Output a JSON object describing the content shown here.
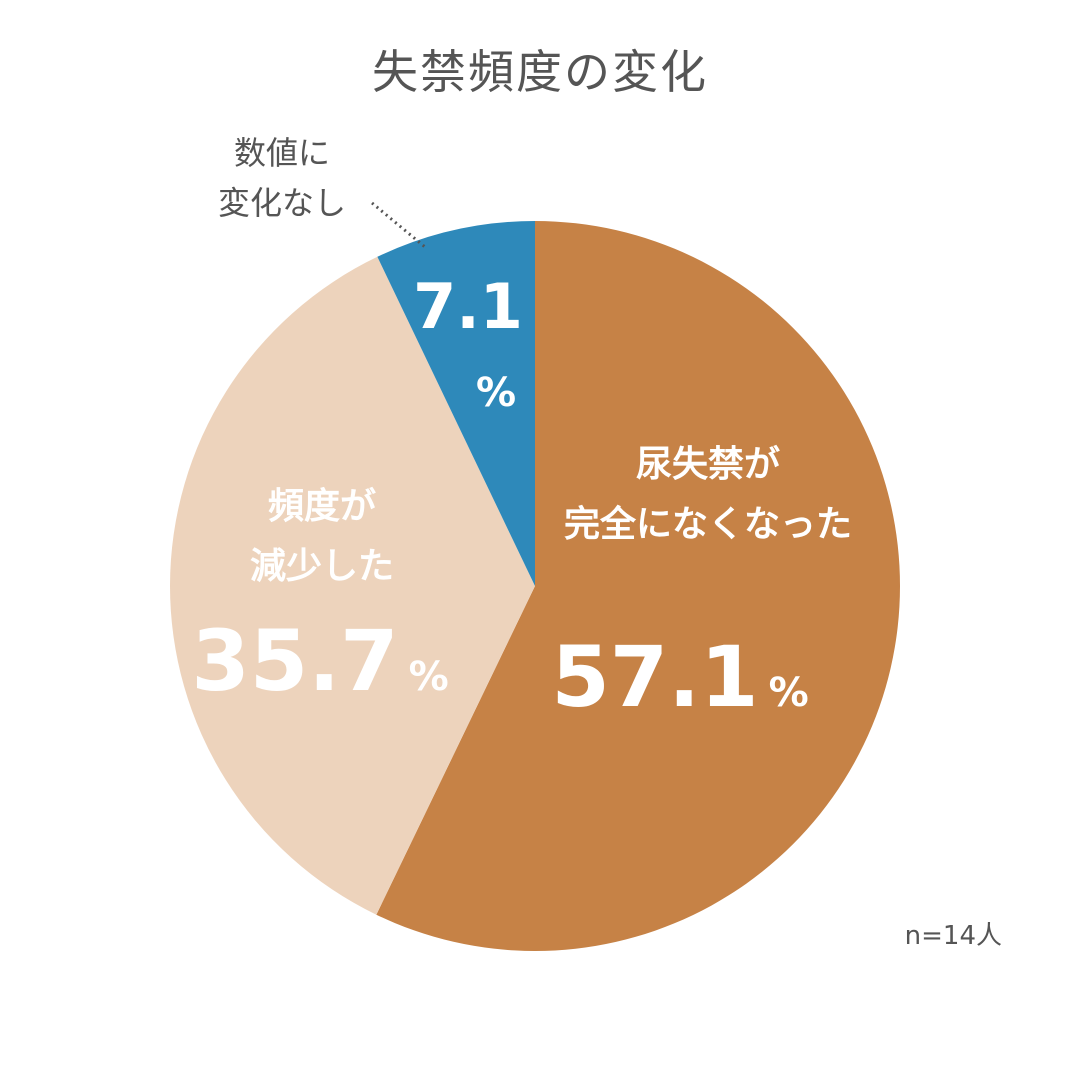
{
  "chart_data": {
    "type": "pie",
    "title": "失禁頻度の変化",
    "sample_size": "n=14人",
    "unit": "%",
    "start_angle": "top, clockwise",
    "slices": [
      {
        "label_lines": [
          "尿失禁が",
          "完全になくなった"
        ],
        "value": 57.1,
        "display": "57.1",
        "color": "#C68246"
      },
      {
        "label_lines": [
          "頻度が",
          "減少した"
        ],
        "value": 35.7,
        "display": "35.7",
        "color": "#EDD3BC"
      },
      {
        "label_lines": [
          "数値に",
          "変化なし"
        ],
        "value": 7.1,
        "display": "7.1",
        "color": "#2E89BA"
      }
    ]
  }
}
